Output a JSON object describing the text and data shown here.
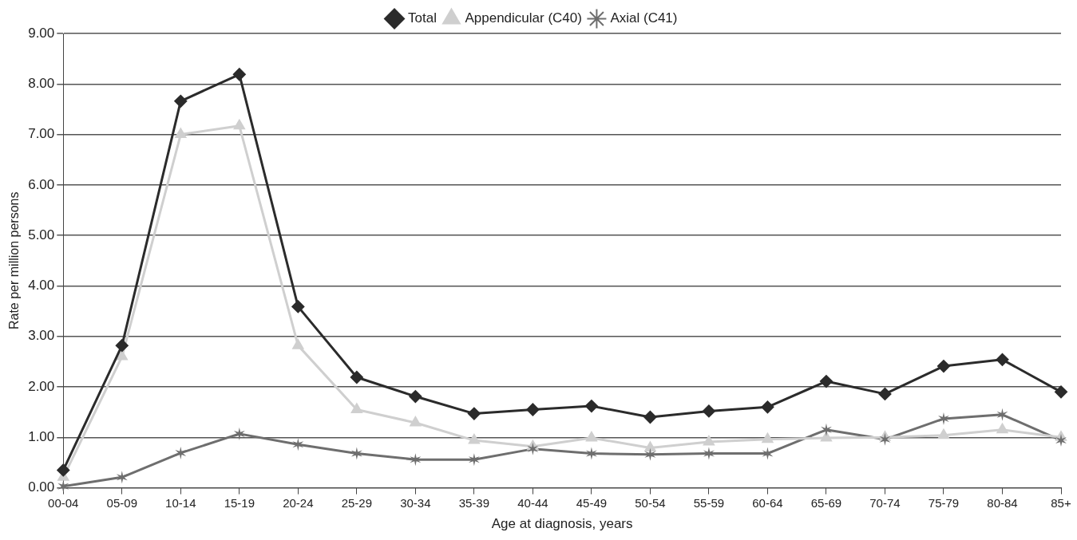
{
  "chart_data": {
    "type": "line",
    "xlabel": "Age at diagnosis, years",
    "ylabel": "Rate per million persons",
    "categories": [
      "00-04",
      "05-09",
      "10-14",
      "15-19",
      "20-24",
      "25-29",
      "30-34",
      "35-39",
      "40-44",
      "45-49",
      "50-54",
      "55-59",
      "60-64",
      "65-69",
      "70-74",
      "75-79",
      "80-84",
      "85+"
    ],
    "series": [
      {
        "name": "Total",
        "color": "#2b2b2b",
        "marker": "diamond",
        "values": [
          0.35,
          2.82,
          7.66,
          8.19,
          3.59,
          2.19,
          1.81,
          1.47,
          1.55,
          1.62,
          1.4,
          1.52,
          1.6,
          2.11,
          1.86,
          2.41,
          2.54,
          1.9
        ]
      },
      {
        "name": "Appendicular (C40)",
        "color": "#cfcfcf",
        "marker": "triangle",
        "values": [
          0.21,
          2.6,
          7.0,
          7.17,
          2.82,
          1.55,
          1.29,
          0.94,
          0.82,
          0.99,
          0.79,
          0.91,
          0.96,
          0.99,
          1.0,
          1.04,
          1.15,
          1.0
        ]
      },
      {
        "name": "Axial (C41)",
        "color": "#6e6e6e",
        "marker": "cross",
        "values": [
          0.03,
          0.21,
          0.69,
          1.07,
          0.86,
          0.68,
          0.56,
          0.56,
          0.77,
          0.68,
          0.66,
          0.68,
          0.68,
          1.15,
          0.96,
          1.37,
          1.45,
          0.94
        ]
      }
    ],
    "ylim": [
      0,
      9
    ],
    "yticks": [
      {
        "value": 0,
        "label": "0.00"
      },
      {
        "value": 1,
        "label": "1.00"
      },
      {
        "value": 2,
        "label": "2.00"
      },
      {
        "value": 3,
        "label": "3.00"
      },
      {
        "value": 4,
        "label": "4.00"
      },
      {
        "value": 5,
        "label": "5.00"
      },
      {
        "value": 6,
        "label": "6.00"
      },
      {
        "value": 7,
        "label": "7.00"
      },
      {
        "value": 8,
        "label": "8.00"
      },
      {
        "value": 9,
        "label": "9.00"
      }
    ],
    "grid": "y",
    "legend": "top",
    "line_style": "solid"
  }
}
